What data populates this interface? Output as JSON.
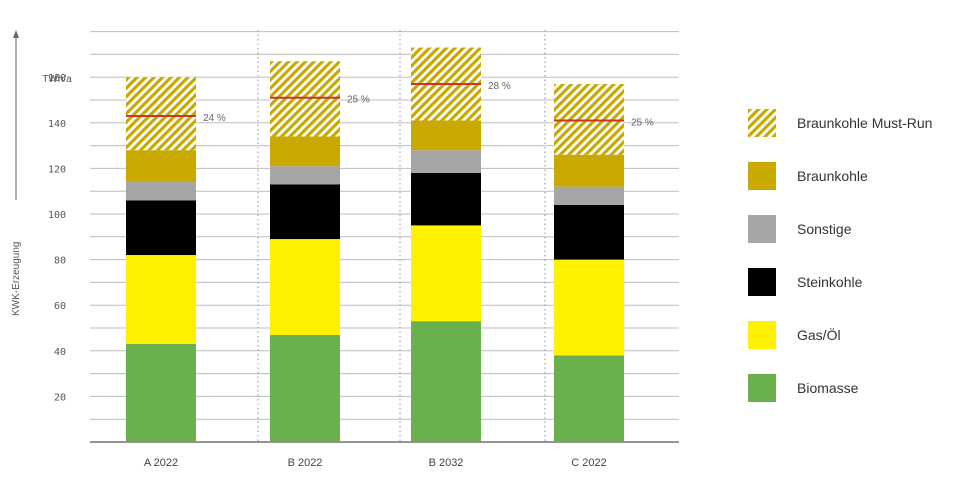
{
  "chart_data": {
    "type": "bar",
    "stacked": true,
    "ylabel": "KWK-Erzeugung",
    "unit_label": "TWh/a",
    "ylim": [
      0,
      180
    ],
    "y_ticks": [
      "20",
      "40",
      "60",
      "80",
      "100",
      "120",
      "140",
      "160"
    ],
    "categories": [
      "A 2022",
      "B 2022",
      "B 2032",
      "C 2022"
    ],
    "series": [
      {
        "name": "Biomasse",
        "color": "#6ab04c",
        "values": [
          43,
          47,
          53,
          38
        ]
      },
      {
        "name": "Gas/Öl",
        "color": "#fff200",
        "values": [
          39,
          42,
          42,
          42
        ]
      },
      {
        "name": "Steinkohle",
        "color": "#000000",
        "values": [
          24,
          24,
          23,
          24
        ]
      },
      {
        "name": "Sonstige",
        "color": "#a6a6a6",
        "values": [
          8,
          8,
          10,
          8
        ]
      },
      {
        "name": "Braunkohle",
        "color": "#c9a800",
        "values": [
          14,
          13,
          13,
          14
        ]
      },
      {
        "name": "Braunkohle Must-Run",
        "color": "#c9a800",
        "pattern": "hatched",
        "values": [
          32,
          33,
          32,
          31
        ]
      }
    ],
    "must_run_line": [
      143,
      151,
      157,
      141
    ],
    "annotations": [
      "24 %",
      "25 %",
      "28 %",
      "25 %"
    ],
    "grid": true,
    "legend_position": "right"
  }
}
